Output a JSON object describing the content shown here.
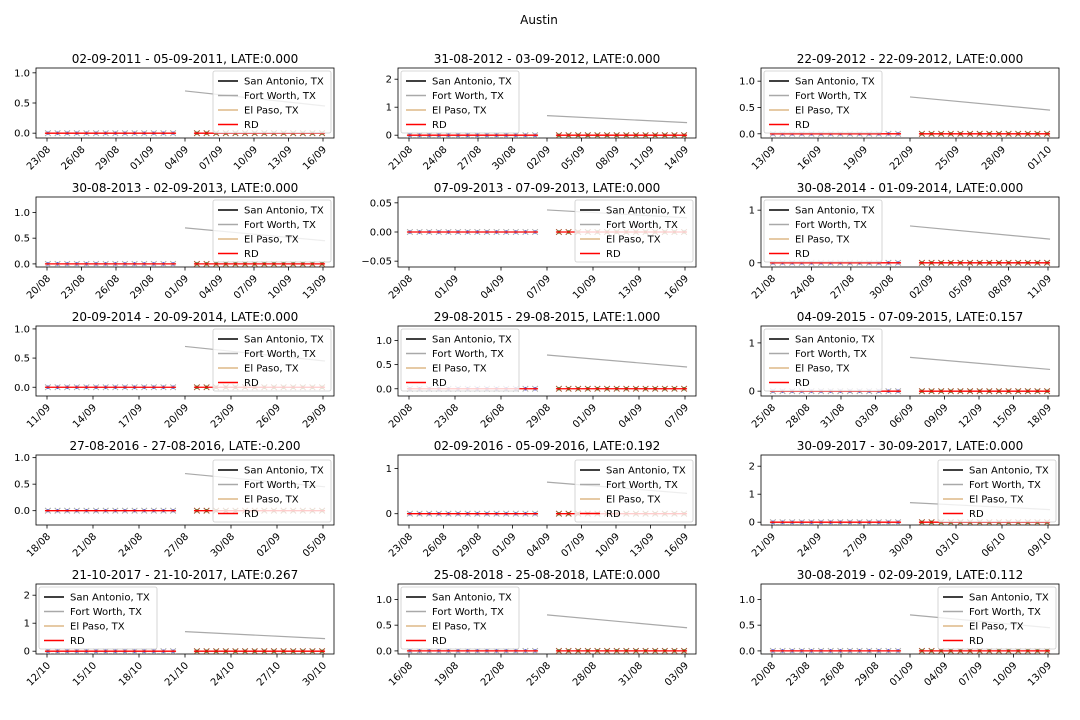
{
  "figure": {
    "suptitle": "Austin"
  },
  "legend_labels": [
    "San Antonio, TX",
    "Fort Worth, TX",
    "El Paso, TX",
    "RD"
  ],
  "colors": {
    "san_antonio": "#000000",
    "fort_worth": "#a9a9a9",
    "el_paso": "#deb887",
    "rd": "#ff0000",
    "pre_dot": "#0000ff",
    "post_dot": "#008000",
    "x_marker_grey": "#a9a9a9",
    "x_marker_black": "#000000"
  },
  "chart_data": [
    {
      "type": "scatter",
      "title": "02-09-2011 - 05-09-2011, LATE:0.000",
      "xticks": [
        "23/08",
        "26/08",
        "29/08",
        "01/09",
        "04/09",
        "07/09",
        "10/09",
        "13/09",
        "16/09"
      ],
      "ylim": [
        -0.08,
        1.08
      ],
      "yticks": [
        "0.0",
        "0.5",
        "1.0"
      ],
      "legend": "upper right"
    },
    {
      "type": "scatter",
      "title": "31-08-2012 - 03-09-2012, LATE:0.000",
      "xticks": [
        "21/08",
        "24/08",
        "27/08",
        "30/08",
        "02/09",
        "05/09",
        "08/09",
        "11/09",
        "14/09"
      ],
      "ylim": [
        -0.1,
        2.4
      ],
      "yticks": [
        "0",
        "1",
        "2"
      ],
      "legend": "upper left"
    },
    {
      "type": "scatter",
      "title": "22-09-2012 - 22-09-2012, LATE:0.000",
      "xticks": [
        "13/09",
        "16/09",
        "19/09",
        "22/09",
        "25/09",
        "28/09",
        "01/10"
      ],
      "ylim": [
        -0.08,
        1.25
      ],
      "yticks": [
        "0.0",
        "0.5",
        "1.0"
      ],
      "legend": "upper left"
    },
    {
      "type": "scatter",
      "title": "30-08-2013 - 02-09-2013, LATE:0.000",
      "xticks": [
        "20/08",
        "23/08",
        "26/08",
        "29/08",
        "01/09",
        "04/09",
        "07/09",
        "10/09",
        "13/09"
      ],
      "ylim": [
        -0.06,
        1.3
      ],
      "yticks": [
        "0.0",
        "0.5",
        "1.0"
      ],
      "legend": "upper right"
    },
    {
      "type": "scatter",
      "title": "07-09-2013 - 07-09-2013, LATE:0.000",
      "xticks": [
        "29/08",
        "01/09",
        "04/09",
        "07/09",
        "10/09",
        "13/09",
        "16/09"
      ],
      "ylim": [
        -0.06,
        0.06
      ],
      "yticks": [
        "−0.05",
        "0.00",
        "0.05"
      ],
      "legend": "upper right"
    },
    {
      "type": "scatter",
      "title": "30-08-2014 - 01-09-2014, LATE:0.000",
      "xticks": [
        "21/08",
        "24/08",
        "27/08",
        "30/08",
        "02/09",
        "05/09",
        "08/09",
        "11/09"
      ],
      "ylim": [
        -0.08,
        1.25
      ],
      "yticks": [
        "0",
        "1"
      ],
      "legend": "upper left"
    },
    {
      "type": "scatter",
      "title": "20-09-2014 - 20-09-2014, LATE:0.000",
      "xticks": [
        "11/09",
        "14/09",
        "17/09",
        "20/09",
        "23/09",
        "26/09",
        "29/09"
      ],
      "ylim": [
        -0.15,
        1.05
      ],
      "yticks": [
        "0.0",
        "0.5",
        "1.0"
      ],
      "legend": "upper right"
    },
    {
      "type": "scatter",
      "title": "29-08-2015 - 29-08-2015, LATE:1.000",
      "xticks": [
        "20/08",
        "23/08",
        "26/08",
        "29/08",
        "01/09",
        "04/09",
        "07/09"
      ],
      "ylim": [
        -0.15,
        1.3
      ],
      "yticks": [
        "0.0",
        "0.5",
        "1.0"
      ],
      "legend": "upper left"
    },
    {
      "type": "scatter",
      "title": "04-09-2015 - 07-09-2015, LATE:0.157",
      "xticks": [
        "25/08",
        "28/08",
        "31/08",
        "03/09",
        "06/09",
        "09/09",
        "12/09",
        "15/09",
        "18/09"
      ],
      "ylim": [
        -0.1,
        1.35
      ],
      "yticks": [
        "0",
        "1"
      ],
      "legend": "upper left"
    },
    {
      "type": "scatter",
      "title": "27-08-2016 - 27-08-2016, LATE:-0.200",
      "xticks": [
        "18/08",
        "21/08",
        "24/08",
        "27/08",
        "30/08",
        "02/09",
        "05/09"
      ],
      "ylim": [
        -0.27,
        1.05
      ],
      "yticks": [
        "0.0",
        "0.5",
        "1.0"
      ],
      "legend": "lower right"
    },
    {
      "type": "scatter",
      "title": "02-09-2016 - 05-09-2016, LATE:0.192",
      "xticks": [
        "23/08",
        "26/08",
        "29/08",
        "01/09",
        "04/09",
        "07/09",
        "10/09",
        "13/09",
        "16/09"
      ],
      "ylim": [
        -0.25,
        1.3
      ],
      "yticks": [
        "0",
        "1"
      ],
      "legend": "lower right"
    },
    {
      "type": "scatter",
      "title": "30-09-2017 - 30-09-2017, LATE:0.000",
      "xticks": [
        "21/09",
        "24/09",
        "27/09",
        "30/09",
        "03/10",
        "06/10",
        "09/10"
      ],
      "ylim": [
        -0.1,
        2.4
      ],
      "yticks": [
        "0",
        "1",
        "2"
      ],
      "legend": "lower right"
    },
    {
      "type": "scatter",
      "title": "21-10-2017 - 21-10-2017, LATE:0.267",
      "xticks": [
        "12/10",
        "15/10",
        "18/10",
        "21/10",
        "24/10",
        "27/10",
        "30/10"
      ],
      "ylim": [
        -0.1,
        2.4
      ],
      "yticks": [
        "0",
        "1",
        "2"
      ],
      "legend": "upper left"
    },
    {
      "type": "scatter",
      "title": "25-08-2018 - 25-08-2018, LATE:0.000",
      "xticks": [
        "16/08",
        "19/08",
        "22/08",
        "25/08",
        "28/08",
        "31/08",
        "03/09"
      ],
      "ylim": [
        -0.06,
        1.3
      ],
      "yticks": [
        "0.0",
        "0.5",
        "1.0"
      ],
      "legend": "upper left"
    },
    {
      "type": "scatter",
      "title": "30-08-2019 - 02-09-2019, LATE:0.112",
      "xticks": [
        "20/08",
        "23/08",
        "26/08",
        "29/08",
        "01/09",
        "04/09",
        "07/09",
        "10/09",
        "13/09"
      ],
      "ylim": [
        -0.06,
        1.3
      ],
      "yticks": [
        "0.0",
        "0.5",
        "1.0"
      ],
      "legend": "upper right"
    }
  ]
}
